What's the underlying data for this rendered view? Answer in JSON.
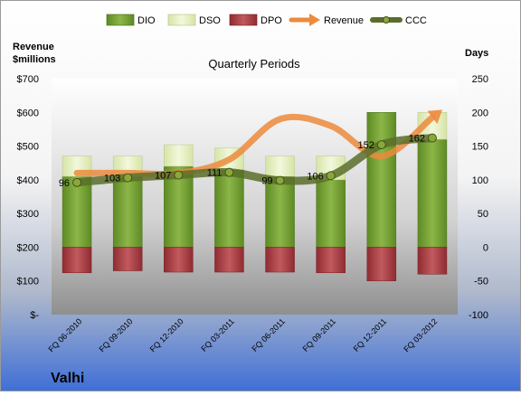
{
  "chart_data": {
    "type": "bar",
    "title": "Quarterly Periods",
    "company": "Valhi",
    "left_axis": {
      "label_line1": "Revenue",
      "label_line2": "$millions",
      "ticks": [
        "$-",
        "$100",
        "$200",
        "$300",
        "$400",
        "$500",
        "$600",
        "$700"
      ],
      "min": 0,
      "max": 700,
      "step": 100
    },
    "right_axis": {
      "label": "Days",
      "ticks": [
        "-100",
        "-50",
        "0",
        "50",
        "100",
        "150",
        "200",
        "250"
      ],
      "min": -100,
      "max": 250,
      "step": 50
    },
    "categories": [
      "FQ 06-2010",
      "FQ 09-2010",
      "FQ 12-2010",
      "FQ 03-2011",
      "FQ 06-2011",
      "FQ 09-2011",
      "FQ 12-2011",
      "FQ 03-2012"
    ],
    "legend": {
      "dio": "DIO",
      "dso": "DSO",
      "dpo": "DPO",
      "revenue": "Revenue",
      "ccc": "CCC"
    },
    "series": [
      {
        "key": "dio",
        "name": "DIO",
        "axis": "days",
        "values": [
          105,
          105,
          120,
          115,
          105,
          100,
          200,
          160
        ]
      },
      {
        "key": "dso",
        "name": "DSO",
        "axis": "days",
        "values": [
          30,
          30,
          32,
          32,
          30,
          35,
          0,
          40
        ]
      },
      {
        "key": "dpo",
        "name": "DPO",
        "axis": "days",
        "values": [
          -38,
          -35,
          -37,
          -37,
          -37,
          -38,
          -50,
          -40
        ]
      },
      {
        "key": "revenue",
        "name": "Revenue",
        "axis": "revenue",
        "values": [
          420,
          420,
          420,
          460,
          580,
          560,
          470,
          585
        ]
      },
      {
        "key": "ccc",
        "name": "CCC",
        "axis": "days",
        "values": [
          96,
          103,
          107,
          111,
          99,
          106,
          152,
          162
        ]
      }
    ],
    "ccc_labels": [
      "96",
      "103",
      "107",
      "111",
      "99",
      "106",
      "152",
      "162"
    ],
    "colors": {
      "dio": "#6f9a2e",
      "dio_light": "#b8d57a",
      "dso": "#e2ecc0",
      "dso_light": "#f7fbe9",
      "dpo": "#a33a3e",
      "dpo_light": "#d98a8e",
      "revenue": "#ec8a3c",
      "ccc": "#5a6e2a",
      "ccc_marker": "#8aa83a"
    }
  }
}
